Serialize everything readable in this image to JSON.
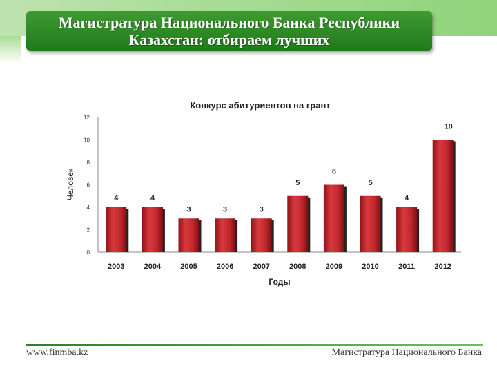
{
  "header": {
    "title_line1": "Магистратура Национального Банка Республики",
    "title_line2": "Казахстан: отбираем лучших"
  },
  "footer": {
    "url": "www.finmba.kz",
    "right_text": "Магистратура Национального Банка"
  },
  "colors": {
    "bar": "#c0282d",
    "accent": "#2e8b2a"
  },
  "chart_data": {
    "type": "bar",
    "title": "Конкурс абитуриентов на грант",
    "xlabel": "Годы",
    "ylabel": "Человек",
    "categories": [
      "2003",
      "2004",
      "2005",
      "2006",
      "2007",
      "2008",
      "2009",
      "2010",
      "2011",
      "2012"
    ],
    "values": [
      4,
      4,
      3,
      3,
      3,
      5,
      6,
      5,
      4,
      10
    ],
    "data_labels": [
      "4",
      "4",
      "3",
      "3",
      "3",
      "5",
      "6",
      "5",
      "4",
      "10"
    ],
    "yticks": [
      "0",
      "2",
      "4",
      "6",
      "8",
      "10",
      "12"
    ],
    "ylim": [
      0,
      12
    ],
    "grid": false,
    "legend": false
  }
}
